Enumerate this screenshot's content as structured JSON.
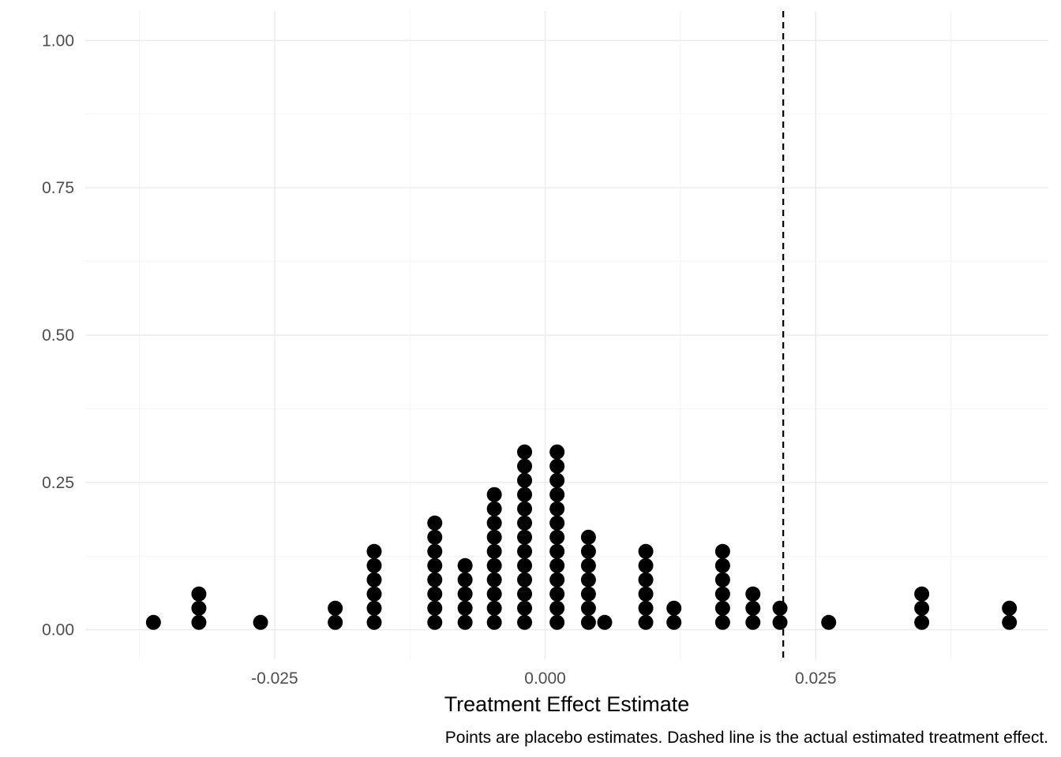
{
  "chart_data": {
    "type": "scatter",
    "subtype": "dotplot",
    "title": "",
    "xlabel": "Treatment Effect Estimate",
    "ylabel": "",
    "caption": "Points are placebo estimates. Dashed line is the actual estimated treatment effect.",
    "xlim": [
      -0.0425,
      0.0465
    ],
    "ylim": [
      -0.05,
      1.05
    ],
    "x_ticks": [
      -0.025,
      0.0,
      0.025
    ],
    "x_tick_labels": [
      "-0.025",
      "0.000",
      "0.025"
    ],
    "y_ticks": [
      0.0,
      0.25,
      0.5,
      0.75,
      1.0
    ],
    "y_tick_labels": [
      "0.00",
      "0.25",
      "0.50",
      "0.75",
      "1.00"
    ],
    "grid": true,
    "legend": "none",
    "colors": {
      "dots": "#000000",
      "reference_line": "#000000",
      "grid": "#ebebeb"
    },
    "reference_line": {
      "x": 0.022,
      "style": "dashed"
    },
    "dot_step": 0.0241,
    "stacks": [
      {
        "x": -0.0362,
        "count": 1
      },
      {
        "x": -0.032,
        "count": 3
      },
      {
        "x": -0.0263,
        "count": 1
      },
      {
        "x": -0.0194,
        "count": 2
      },
      {
        "x": -0.0158,
        "count": 6
      },
      {
        "x": -0.0102,
        "count": 8
      },
      {
        "x": -0.0074,
        "count": 5
      },
      {
        "x": -0.0047,
        "count": 10
      },
      {
        "x": -0.0019,
        "count": 13
      },
      {
        "x": 0.0011,
        "count": 13
      },
      {
        "x": 0.004,
        "count": 7
      },
      {
        "x": 0.0055,
        "count": 1
      },
      {
        "x": 0.0093,
        "count": 6
      },
      {
        "x": 0.0119,
        "count": 2
      },
      {
        "x": 0.0164,
        "count": 6
      },
      {
        "x": 0.0192,
        "count": 3
      },
      {
        "x": 0.0217,
        "count": 2
      },
      {
        "x": 0.0262,
        "count": 1
      },
      {
        "x": 0.0348,
        "count": 3
      },
      {
        "x": 0.0429,
        "count": 2
      }
    ]
  }
}
